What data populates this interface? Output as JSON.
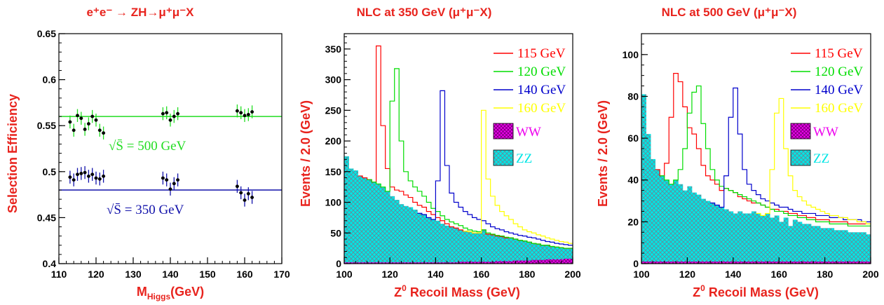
{
  "colors": {
    "title": "#e8231d",
    "m115": "#ff0000",
    "m120": "#00dd00",
    "m140": "#0000cc",
    "m160": "#ffff00",
    "ww": "#ee00ee",
    "zz": "#00e5e5",
    "eff500": "#22dd22",
    "eff350": "#1111aa"
  },
  "chart_data": [
    {
      "type": "scatter",
      "title": "e⁺e⁻ → ZH→μ⁺μ⁻X",
      "xlabel": "M_Higgs(GeV)",
      "ylabel": "Selection Efficiency",
      "xlim": [
        110,
        170
      ],
      "ylim": [
        0.4,
        0.65
      ],
      "xticks": [
        "110",
        "120",
        "130",
        "140",
        "150",
        "160",
        "170"
      ],
      "yticks": [
        "0.4",
        "0.45",
        "0.5",
        "0.55",
        "0.6",
        "0.65"
      ],
      "series": [
        {
          "name": "√S̄ = 500 GeV",
          "line_y": 0.56,
          "x": [
            113,
            114,
            115,
            116,
            117,
            118,
            119,
            120,
            121,
            122,
            138,
            139,
            140,
            141,
            142,
            158,
            159,
            160,
            161,
            162
          ],
          "y": [
            0.554,
            0.545,
            0.561,
            0.558,
            0.546,
            0.552,
            0.56,
            0.556,
            0.545,
            0.542,
            0.563,
            0.564,
            0.556,
            0.56,
            0.563,
            0.566,
            0.564,
            0.561,
            0.562,
            0.565
          ],
          "err": 0.007
        },
        {
          "name": "√S̄ = 350 GeV",
          "line_y": 0.48,
          "x": [
            113,
            114,
            115,
            116,
            117,
            118,
            119,
            120,
            121,
            122,
            138,
            139,
            140,
            141,
            142,
            158,
            159,
            160,
            161,
            162
          ],
          "y": [
            0.494,
            0.491,
            0.497,
            0.498,
            0.499,
            0.495,
            0.497,
            0.493,
            0.492,
            0.495,
            0.493,
            0.491,
            0.481,
            0.487,
            0.491,
            0.484,
            0.477,
            0.469,
            0.476,
            0.472
          ],
          "err": 0.007
        }
      ]
    },
    {
      "type": "histogram",
      "title": "NLC at 350 GeV (μ⁺μ⁻X)",
      "xlabel": "Z⁰ Recoil Mass (GeV)",
      "ylabel": "Events / 2.0 (GeV)",
      "xlim": [
        100,
        200
      ],
      "ylim": [
        0,
        375
      ],
      "bin_width": 2,
      "xticks": [
        "100",
        "120",
        "140",
        "160",
        "180",
        "200"
      ],
      "yticks": [
        "0",
        "50",
        "100",
        "150",
        "200",
        "250",
        "300",
        "350"
      ],
      "legend": [
        "115 GeV",
        "120 GeV",
        "140 GeV",
        "160 GeV",
        "WW",
        "ZZ"
      ],
      "zz": [
        175,
        155,
        152,
        143,
        140,
        137,
        133,
        130,
        125,
        118,
        110,
        104,
        97,
        94,
        92,
        88,
        82,
        80,
        75,
        72,
        70,
        65,
        62,
        60,
        58,
        55,
        53,
        52,
        50,
        50,
        55,
        48,
        47,
        45,
        44,
        42,
        42,
        40,
        38,
        37,
        35,
        33,
        32,
        30,
        30,
        28,
        27,
        26,
        25,
        25
      ],
      "ww": [
        2,
        2,
        2,
        2,
        2,
        2,
        2,
        2,
        2,
        2,
        2,
        2,
        2,
        2,
        2,
        2,
        2,
        2,
        2,
        2,
        2,
        2,
        2,
        2,
        2,
        3,
        3,
        3,
        3,
        3,
        3,
        3,
        3,
        4,
        4,
        4,
        4,
        5,
        5,
        5,
        5,
        6,
        6,
        6,
        7,
        7,
        7,
        7,
        8,
        8
      ],
      "peaks": [
        {
          "name": "115 GeV",
          "color": "m115",
          "start": 105,
          "values": [
            175,
            155,
            152,
            143,
            140,
            137,
            133,
            355,
            225,
            155,
            125,
            120,
            118,
            112,
            108,
            100,
            95,
            92,
            85,
            80,
            75,
            70,
            65,
            60,
            58,
            55,
            53,
            52,
            50,
            50,
            55,
            48,
            47,
            45,
            44,
            42,
            42,
            40,
            38,
            37,
            35,
            33,
            32,
            30,
            30,
            28,
            27,
            26,
            25,
            25
          ]
        },
        {
          "name": "120 GeV",
          "color": "m120",
          "start": 110,
          "values": [
            175,
            155,
            152,
            143,
            140,
            137,
            133,
            130,
            125,
            118,
            265,
            318,
            200,
            150,
            135,
            125,
            118,
            110,
            100,
            90,
            85,
            78,
            72,
            68,
            65,
            62,
            58,
            55,
            53,
            52,
            55,
            50,
            48,
            46,
            45,
            43,
            42,
            40,
            38,
            37,
            35,
            33,
            32,
            30,
            30,
            28,
            27,
            26,
            25,
            25
          ]
        },
        {
          "name": "140 GeV",
          "color": "m140",
          "start": 131,
          "values": [
            175,
            155,
            152,
            143,
            140,
            137,
            133,
            130,
            125,
            118,
            110,
            104,
            97,
            94,
            92,
            88,
            82,
            80,
            75,
            72,
            135,
            282,
            160,
            115,
            100,
            92,
            85,
            80,
            75,
            72,
            70,
            65,
            60,
            57,
            55,
            52,
            50,
            48,
            46,
            45,
            43,
            42,
            40,
            38,
            36,
            35,
            33,
            32,
            31,
            30
          ]
        },
        {
          "name": "160 GeV",
          "color": "m160",
          "start": 151,
          "values": [
            175,
            155,
            152,
            143,
            140,
            137,
            133,
            130,
            125,
            118,
            110,
            104,
            97,
            94,
            92,
            88,
            82,
            80,
            75,
            72,
            70,
            65,
            62,
            60,
            58,
            55,
            53,
            52,
            50,
            50,
            250,
            138,
            110,
            95,
            85,
            78,
            72,
            65,
            60,
            55,
            52,
            50,
            47,
            45,
            42,
            40,
            38,
            36,
            35,
            33
          ]
        }
      ]
    },
    {
      "type": "histogram",
      "title": "NLC at 500 GeV (μ⁺μ⁻X)",
      "xlabel": "Z⁰ Recoil Mass (GeV)",
      "ylabel": "Events / 2.0 (GeV)",
      "xlim": [
        100,
        200
      ],
      "ylim": [
        0,
        110
      ],
      "bin_width": 2,
      "xticks": [
        "100",
        "120",
        "140",
        "160",
        "180",
        "200"
      ],
      "yticks": [
        "0",
        "20",
        "40",
        "60",
        "80",
        "100"
      ],
      "legend": [
        "115 GeV",
        "120 GeV",
        "140 GeV",
        "160 GeV",
        "WW",
        "ZZ"
      ],
      "zz": [
        81,
        62,
        50,
        45,
        42,
        40,
        38,
        40,
        38,
        35,
        37,
        34,
        33,
        31,
        30,
        29,
        28,
        27,
        26,
        25,
        24,
        25,
        24,
        24,
        25,
        24,
        23,
        24,
        22,
        23,
        20,
        22,
        18,
        21,
        20,
        19,
        19,
        18,
        18,
        17,
        17,
        17,
        16,
        16,
        16,
        15,
        15,
        15,
        15,
        14
      ],
      "ww": [
        1,
        1,
        1,
        1,
        1,
        1,
        1,
        1,
        1,
        1,
        1,
        1,
        1,
        1,
        1,
        1,
        1,
        1,
        1,
        1,
        1,
        1,
        1,
        1,
        1,
        1,
        1,
        1,
        1,
        1,
        1,
        1,
        1,
        1,
        1,
        1,
        1,
        1,
        1,
        1,
        1,
        1,
        1,
        1,
        1,
        1,
        1,
        1,
        1,
        1
      ],
      "peaks": [
        {
          "name": "115 GeV",
          "color": "m115",
          "start": 105,
          "values": [
            81,
            62,
            50,
            45,
            42,
            48,
            70,
            91,
            87,
            75,
            65,
            62,
            55,
            47,
            42,
            40,
            38,
            35,
            36,
            35,
            34,
            32,
            31,
            30,
            29,
            29,
            28,
            27,
            26,
            26,
            25,
            25,
            24,
            24,
            23,
            23,
            22,
            22,
            21,
            21,
            21,
            20,
            20,
            20,
            20,
            19,
            19,
            19,
            19,
            19
          ]
        },
        {
          "name": "120 GeV",
          "color": "m120",
          "start": 108,
          "values": [
            81,
            62,
            50,
            45,
            42,
            40,
            38,
            40,
            45,
            55,
            72,
            82,
            85,
            67,
            55,
            45,
            40,
            37,
            36,
            35,
            34,
            33,
            32,
            31,
            30,
            29,
            28,
            27,
            26,
            25,
            25,
            24,
            23,
            23,
            22,
            22,
            21,
            21,
            20,
            20,
            20,
            19,
            19,
            19,
            19,
            18,
            18,
            18,
            18,
            18
          ]
        },
        {
          "name": "140 GeV",
          "color": "m140",
          "start": 130,
          "values": [
            81,
            62,
            50,
            45,
            42,
            40,
            38,
            40,
            38,
            35,
            37,
            34,
            33,
            31,
            30,
            29,
            28,
            27,
            42,
            70,
            84,
            62,
            45,
            38,
            35,
            33,
            31,
            30,
            29,
            28,
            27,
            27,
            26,
            25,
            25,
            24,
            24,
            24,
            23,
            23,
            23,
            22,
            22,
            22,
            21,
            21,
            21,
            21,
            20,
            20
          ]
        },
        {
          "name": "160 GeV",
          "color": "m160",
          "start": 150,
          "values": [
            81,
            62,
            50,
            45,
            42,
            40,
            38,
            40,
            38,
            35,
            37,
            34,
            33,
            31,
            30,
            29,
            28,
            27,
            26,
            25,
            24,
            25,
            24,
            24,
            25,
            24,
            23,
            24,
            45,
            72,
            79,
            55,
            42,
            35,
            32,
            30,
            28,
            27,
            26,
            25,
            24,
            23,
            23,
            22,
            22,
            21,
            21,
            20,
            20,
            19
          ]
        }
      ]
    }
  ]
}
